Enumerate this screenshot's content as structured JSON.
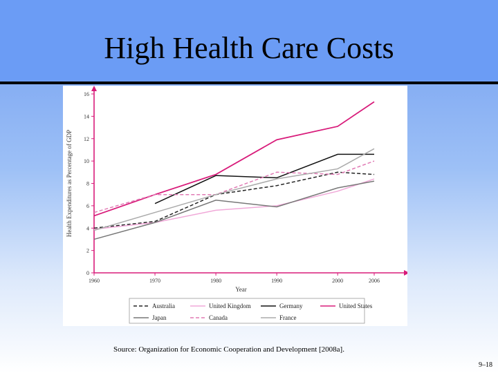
{
  "slide": {
    "title": "High Health Care Costs",
    "source": "Source:  Organization for Economic Cooperation and Development [2008a].",
    "page_number": "9–18"
  },
  "chart_data": {
    "type": "line",
    "title": "",
    "xlabel": "Year",
    "ylabel": "Health Expenditures as Percentage of GDP",
    "x": [
      1960,
      1970,
      1980,
      1990,
      2000,
      2006
    ],
    "x_ticks": [
      "1960",
      "1970",
      "1980",
      "1990",
      "2000",
      "2006"
    ],
    "ylim": [
      0,
      16
    ],
    "y_ticks": [
      "0",
      "2",
      "4",
      "6",
      "8",
      "10",
      "12",
      "14",
      "16"
    ],
    "axis_color": "#d81b7a",
    "legend_position": "bottom",
    "series": [
      {
        "name": "Australia",
        "color": "#222222",
        "style": "dashed",
        "values": [
          4.0,
          4.6,
          7.0,
          7.8,
          9.0,
          8.8
        ]
      },
      {
        "name": "United Kingdom",
        "color": "#f0a8d8",
        "style": "solid",
        "values": [
          3.9,
          4.5,
          5.6,
          6.0,
          7.3,
          8.4
        ]
      },
      {
        "name": "Germany",
        "color": "#111111",
        "style": "solid",
        "values": [
          null,
          6.2,
          8.7,
          8.5,
          10.6,
          10.6
        ]
      },
      {
        "name": "United States",
        "color": "#d81b7a",
        "style": "solid",
        "values": [
          5.1,
          7.0,
          8.8,
          11.9,
          13.1,
          15.3
        ]
      },
      {
        "name": "Japan",
        "color": "#777777",
        "style": "solid",
        "values": [
          3.0,
          4.5,
          6.5,
          5.9,
          7.6,
          8.2
        ]
      },
      {
        "name": "Canada",
        "color": "#e07ab4",
        "style": "dashed",
        "values": [
          5.4,
          7.0,
          7.0,
          9.0,
          8.8,
          10.0
        ]
      },
      {
        "name": "France",
        "color": "#aaaaaa",
        "style": "solid",
        "values": [
          3.8,
          5.4,
          7.0,
          8.4,
          9.3,
          11.1
        ]
      }
    ]
  }
}
